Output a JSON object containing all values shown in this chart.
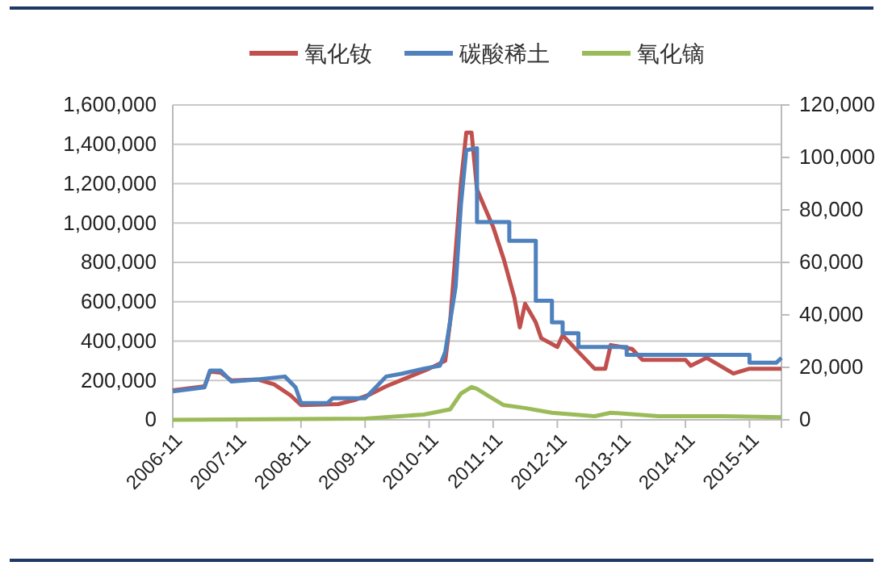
{
  "chart_data": {
    "type": "line",
    "legend": "top",
    "grid": "y",
    "line_style": "solid",
    "marker": "none",
    "xlim": [
      "2006-11",
      "2016-05"
    ],
    "xticks": [
      {
        "value": "2006-11",
        "label": "2006-11"
      },
      {
        "value": "2007-11",
        "label": "2007-11"
      },
      {
        "value": "2008-11",
        "label": "2008-11"
      },
      {
        "value": "2009-11",
        "label": "2009-11"
      },
      {
        "value": "2010-11",
        "label": "2010-11"
      },
      {
        "value": "2011-11",
        "label": "2011-11"
      },
      {
        "value": "2012-11",
        "label": "2012-11"
      },
      {
        "value": "2013-11",
        "label": "2013-11"
      },
      {
        "value": "2014-11",
        "label": "2014-11"
      },
      {
        "value": "2015-11",
        "label": "2015-11"
      }
    ],
    "ylim": [
      0,
      1600000
    ],
    "yticks": [
      {
        "value": 0,
        "label": "0"
      },
      {
        "value": 200000,
        "label": "200,000"
      },
      {
        "value": 400000,
        "label": "400,000"
      },
      {
        "value": 600000,
        "label": "600,000"
      },
      {
        "value": 800000,
        "label": "800,000"
      },
      {
        "value": 1000000,
        "label": "1,000,000"
      },
      {
        "value": 1200000,
        "label": "1,200,000"
      },
      {
        "value": 1400000,
        "label": "1,400,000"
      },
      {
        "value": 1600000,
        "label": "1,600,000"
      }
    ],
    "y2lim": [
      0,
      120000
    ],
    "y2ticks": [
      {
        "value": 0,
        "label": "0"
      },
      {
        "value": 20000,
        "label": "20,000"
      },
      {
        "value": 40000,
        "label": "40,000"
      },
      {
        "value": 60000,
        "label": "60,000"
      },
      {
        "value": 80000,
        "label": "80,000"
      },
      {
        "value": 100000,
        "label": "100,000"
      },
      {
        "value": 120000,
        "label": "120,000"
      }
    ],
    "series": [
      {
        "name": "氧化钕",
        "color": "#c0504d",
        "x": [
          "2006-11",
          "2007-05",
          "2007-06",
          "2007-08",
          "2007-10",
          "2008-03",
          "2008-06",
          "2008-09",
          "2008-11",
          "2009-06",
          "2009-09",
          "2009-12",
          "2010-03",
          "2010-07",
          "2010-11",
          "2011-02",
          "2011-03",
          "2011-04",
          "2011-05",
          "2011-06",
          "2011-07",
          "2011-08",
          "2011-11",
          "2012-01",
          "2012-03",
          "2012-04",
          "2012-05",
          "2012-07",
          "2012-08",
          "2012-11",
          "2012-12",
          "2013-03",
          "2013-06",
          "2013-08",
          "2013-09",
          "2014-01",
          "2014-03",
          "2014-11",
          "2014-12",
          "2015-03",
          "2015-08",
          "2015-11",
          "2016-05"
        ],
        "values": [
          150000,
          170000,
          245000,
          240000,
          200000,
          205000,
          180000,
          125000,
          75000,
          80000,
          100000,
          130000,
          170000,
          215000,
          260000,
          300000,
          500000,
          850000,
          1200000,
          1460000,
          1460000,
          1170000,
          980000,
          815000,
          620000,
          470000,
          590000,
          495000,
          415000,
          370000,
          430000,
          345000,
          260000,
          260000,
          380000,
          360000,
          305000,
          305000,
          275000,
          315000,
          235000,
          260000,
          260000
        ]
      },
      {
        "name": "碳酸稀土",
        "color": "#4f81bd",
        "x": [
          "2006-11",
          "2007-05",
          "2007-06",
          "2007-08",
          "2007-10",
          "2008-03",
          "2008-08",
          "2008-10",
          "2008-11",
          "2009-04",
          "2009-05",
          "2009-11",
          "2010-01",
          "2010-03",
          "2010-06",
          "2010-10",
          "2011-01",
          "2011-02",
          "2011-04",
          "2011-05",
          "2011-06",
          "2011-08",
          "2011-08",
          "2012-02",
          "2012-02",
          "2012-07",
          "2012-07",
          "2012-10",
          "2012-10",
          "2012-12",
          "2012-12",
          "2013-03",
          "2013-03",
          "2013-12",
          "2013-12",
          "2015-11",
          "2015-11",
          "2016-04",
          "2016-05"
        ],
        "values": [
          145000,
          165000,
          250000,
          250000,
          195000,
          205000,
          220000,
          165000,
          85000,
          85000,
          110000,
          110000,
          165000,
          220000,
          235000,
          260000,
          275000,
          345000,
          675000,
          1090000,
          1370000,
          1380000,
          1005000,
          1005000,
          910000,
          910000,
          605000,
          605000,
          495000,
          495000,
          440000,
          440000,
          370000,
          370000,
          330000,
          330000,
          290000,
          290000,
          315000
        ]
      },
      {
        "name": "氧化镝",
        "color": "#9bbb59",
        "axis": "y2",
        "x": [
          "2006-11",
          "2009-11",
          "2010-10",
          "2011-03",
          "2011-05",
          "2011-07",
          "2011-08",
          "2011-10",
          "2012-01",
          "2012-05",
          "2012-10",
          "2013-06",
          "2013-09",
          "2014-06",
          "2015-06",
          "2016-05"
        ],
        "values": [
          0,
          500,
          2000,
          4000,
          10000,
          12500,
          11800,
          9300,
          5600,
          4500,
          2700,
          1400,
          2700,
          1400,
          1400,
          1000
        ]
      }
    ]
  }
}
